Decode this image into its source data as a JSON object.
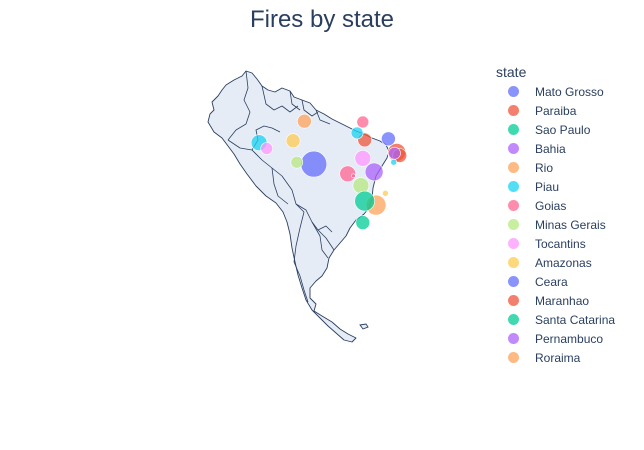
{
  "chart_data": {
    "type": "scatter_geo",
    "title": "Fires by state",
    "scope": "south america",
    "land_color": "#e5ecf6",
    "border_color": "#2a3f5f",
    "legend": {
      "title": "state",
      "placement": "right",
      "items": [
        {
          "name": "Mato Grosso",
          "color": "#636efa"
        },
        {
          "name": "Paraiba",
          "color": "#EF553B"
        },
        {
          "name": "Sao Paulo",
          "color": "#00cc96"
        },
        {
          "name": "Bahia",
          "color": "#ab63fa"
        },
        {
          "name": "Rio",
          "color": "#FFA15A"
        },
        {
          "name": "Piau",
          "color": "#19d3f3"
        },
        {
          "name": "Goias",
          "color": "#FF6692"
        },
        {
          "name": "Minas Gerais",
          "color": "#B6E880"
        },
        {
          "name": "Tocantins",
          "color": "#FF97FF"
        },
        {
          "name": "Amazonas",
          "color": "#FECB52"
        },
        {
          "name": "Ceara",
          "color": "#636efa"
        },
        {
          "name": "Maranhao",
          "color": "#EF553B"
        },
        {
          "name": "Santa Catarina",
          "color": "#00cc96"
        },
        {
          "name": "Pernambuco",
          "color": "#ab63fa"
        },
        {
          "name": "Roraima",
          "color": "#FFA15A"
        }
      ]
    },
    "points": [
      {
        "lon": -58.0,
        "lat": -9.0,
        "color": "#636efa",
        "size": 13
      },
      {
        "lon": -38.2,
        "lat": -2.5,
        "color": "#636efa",
        "size": 7
      },
      {
        "lon": -36.0,
        "lat": -6.0,
        "color": "#EF553B",
        "size": 9
      },
      {
        "lon": -35.2,
        "lat": -6.8,
        "color": "#EF553B",
        "size": 7
      },
      {
        "lon": -44.5,
        "lat": -2.8,
        "color": "#EF553B",
        "size": 7
      },
      {
        "lon": -36.6,
        "lat": -6.2,
        "color": "#ab63fa",
        "size": 6
      },
      {
        "lon": -42.0,
        "lat": -11.0,
        "color": "#ab63fa",
        "size": 9
      },
      {
        "lon": -36.8,
        "lat": -8.5,
        "color": "#19d3f3",
        "size": 3
      },
      {
        "lon": -46.5,
        "lat": -1.0,
        "color": "#19d3f3",
        "size": 6
      },
      {
        "lon": -72.5,
        "lat": -3.5,
        "color": "#19d3f3",
        "size": 8
      },
      {
        "lon": -45.0,
        "lat": 1.8,
        "color": "#FF6692",
        "size": 6
      },
      {
        "lon": -49.0,
        "lat": -11.5,
        "color": "#FF6692",
        "size": 8
      },
      {
        "lon": -47.5,
        "lat": -12.0,
        "color": "#FF6692",
        "size": 2
      },
      {
        "lon": -70.5,
        "lat": -5.0,
        "color": "#FF97FF",
        "size": 6
      },
      {
        "lon": -45.0,
        "lat": -7.5,
        "color": "#FF97FF",
        "size": 8
      },
      {
        "lon": -63.5,
        "lat": -3.0,
        "color": "#FECB52",
        "size": 7
      },
      {
        "lon": -39.0,
        "lat": -16.5,
        "color": "#FECB52",
        "size": 3
      },
      {
        "lon": -62.5,
        "lat": -8.5,
        "color": "#B6E880",
        "size": 6
      },
      {
        "lon": -45.5,
        "lat": -14.5,
        "color": "#B6E880",
        "size": 8
      },
      {
        "lon": -60.5,
        "lat": 2.0,
        "color": "#FFA15A",
        "size": 7
      },
      {
        "lon": -41.5,
        "lat": -19.5,
        "color": "#FFA15A",
        "size": 10
      },
      {
        "lon": -44.5,
        "lat": -18.5,
        "color": "#00cc96",
        "size": 10
      },
      {
        "lon": -45.0,
        "lat": -24.0,
        "color": "#00cc96",
        "size": 7
      }
    ]
  }
}
